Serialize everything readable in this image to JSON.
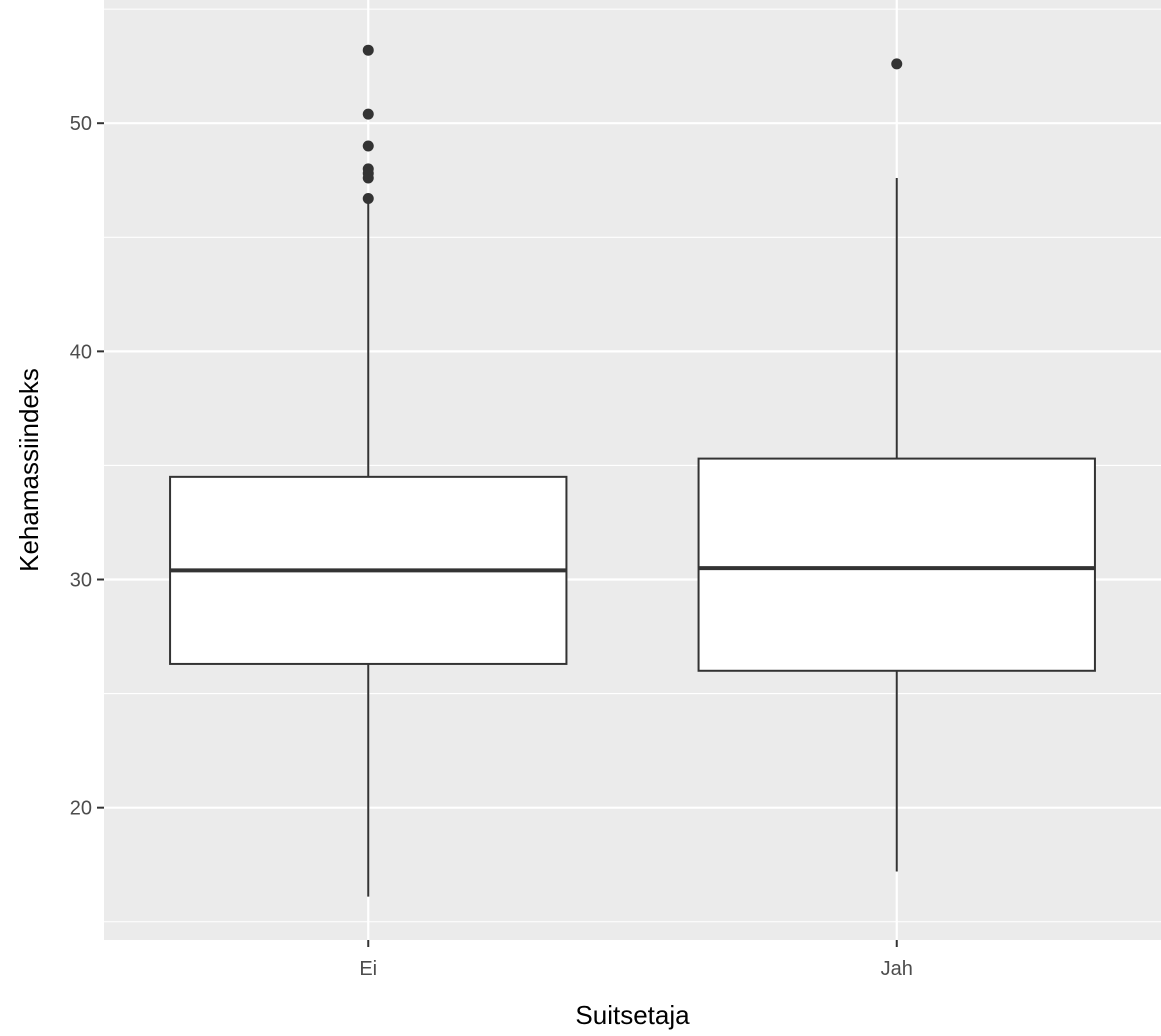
{
  "chart_data": {
    "type": "boxplot",
    "xlabel": "Suitsetaja",
    "ylabel": "Kehamassiindeks",
    "categories": [
      "Ei",
      "Jah"
    ],
    "y_ticks": [
      20,
      30,
      40,
      50
    ],
    "ylim": [
      14.2,
      55.4
    ],
    "boxes": [
      {
        "category": "Ei",
        "q1": 26.3,
        "median": 30.4,
        "q3": 34.5,
        "whisker_low": 16.1,
        "whisker_high": 46.7,
        "outliers": [
          46.7,
          47.6,
          47.8,
          48.0,
          49.0,
          50.4,
          53.2
        ]
      },
      {
        "category": "Jah",
        "q1": 26.0,
        "median": 30.5,
        "q3": 35.3,
        "whisker_low": 17.2,
        "whisker_high": 47.6,
        "outliers": [
          52.6
        ]
      }
    ],
    "grid": true,
    "panel_background": "#ebebeb",
    "grid_color": "#ffffff",
    "box_fill": "#ffffff",
    "line_color": "#333333"
  }
}
